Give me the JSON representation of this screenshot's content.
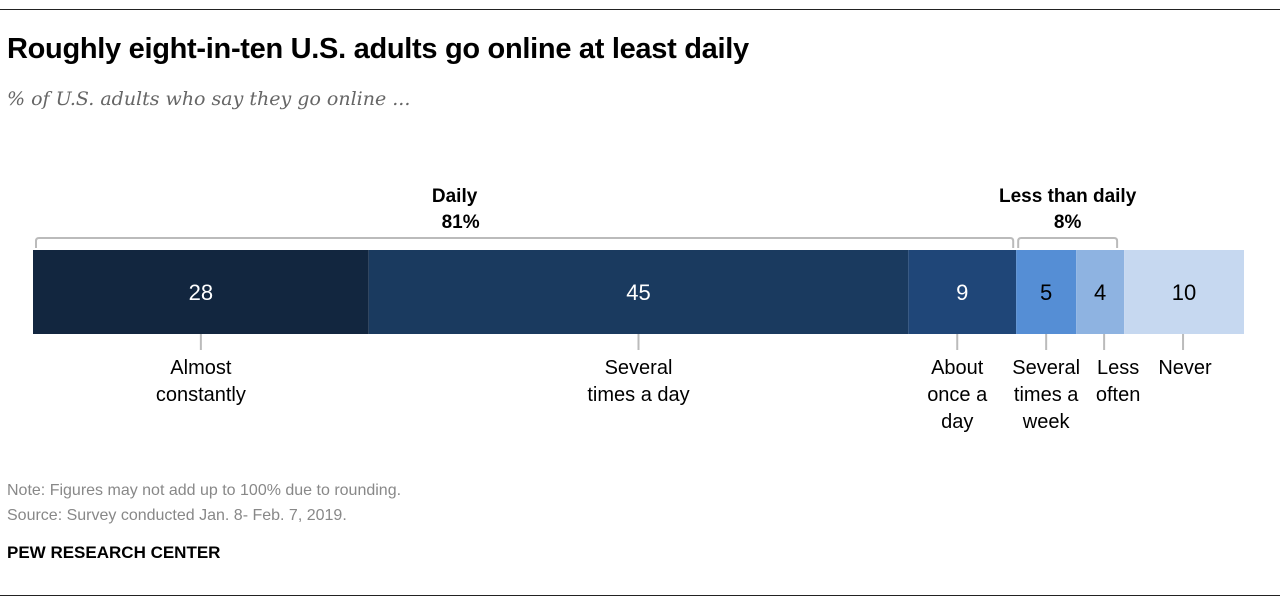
{
  "title": "Roughly eight-in-ten U.S. adults go online at least daily",
  "subtitle": "% of U.S. adults who say they go online ...",
  "note": "Note: Figures may not add up to 100% due to rounding.",
  "source": "Source: Survey conducted Jan. 8- Feb. 7, 2019.",
  "brand": "PEW RESEARCH CENTER",
  "chart_data": {
    "type": "bar",
    "orientation": "horizontal-stacked",
    "categories": [
      [
        "Almost",
        "constantly"
      ],
      [
        "Several",
        "times a day"
      ],
      [
        "About",
        "once a",
        "day"
      ],
      [
        "Several",
        "times a",
        "week"
      ],
      [
        "Less",
        "often"
      ],
      [
        "Never"
      ]
    ],
    "values": [
      28,
      45,
      9,
      5,
      4,
      10
    ],
    "value_labels": [
      "28",
      "45",
      "9",
      "5",
      "4",
      "10"
    ],
    "colors": [
      "#12263f",
      "#1a3a5f",
      "#1f4678",
      "#558ed5",
      "#8eb3e1",
      "#c6d8f0"
    ],
    "label_colors": [
      "#ffffff",
      "#ffffff",
      "#ffffff",
      "#000000",
      "#000000",
      "#000000"
    ],
    "groups": [
      {
        "label": "Daily",
        "value_label": "81%",
        "from": 0,
        "to": 2
      },
      {
        "label": "Less than daily",
        "value_label": "8%",
        "from": 3,
        "to": 4
      }
    ],
    "xlim": [
      0,
      101
    ]
  }
}
